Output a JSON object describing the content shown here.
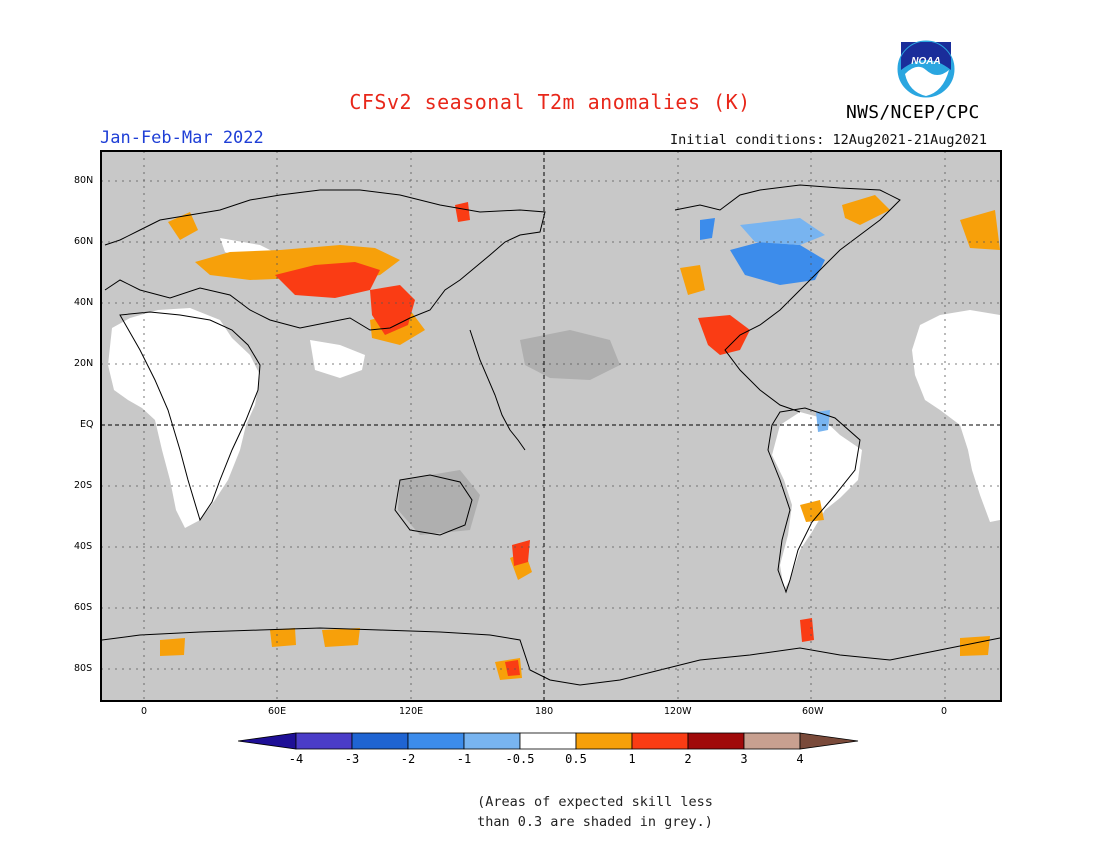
{
  "title": "CFSv2 seasonal T2m anomalies (K)",
  "season": "Jan-Feb-Mar 2022",
  "initial_conditions": "Initial conditions: 12Aug2021-21Aug2021",
  "agency": "NWS/NCEP/CPC",
  "logo_text": "NOAA",
  "latitude_labels": [
    "80N",
    "60N",
    "40N",
    "20N",
    "EQ",
    "20S",
    "40S",
    "60S",
    "80S"
  ],
  "longitude_labels": [
    "0",
    "60E",
    "120E",
    "180",
    "120W",
    "60W",
    "0"
  ],
  "colorbar": {
    "labels": [
      "-4",
      "-3",
      "-2",
      "-1",
      "-0.5",
      "0.5",
      "1",
      "2",
      "3",
      "4"
    ],
    "colors": [
      "#1e0f96",
      "#4a3cc8",
      "#1f64d2",
      "#3c8ceb",
      "#78b4f0",
      "#ffffff",
      "#f7a00a",
      "#fa3c14",
      "#a00a0a",
      "#c8a090",
      "#7a4a3a"
    ]
  },
  "map_colors": {
    "ocean": "#c8c8c8",
    "skill_land": "#ffffff",
    "coast": "#000000"
  },
  "footnote_lines": [
    "(Areas of expected skill less",
    "than 0.3 are shaded in grey.)"
  ]
}
